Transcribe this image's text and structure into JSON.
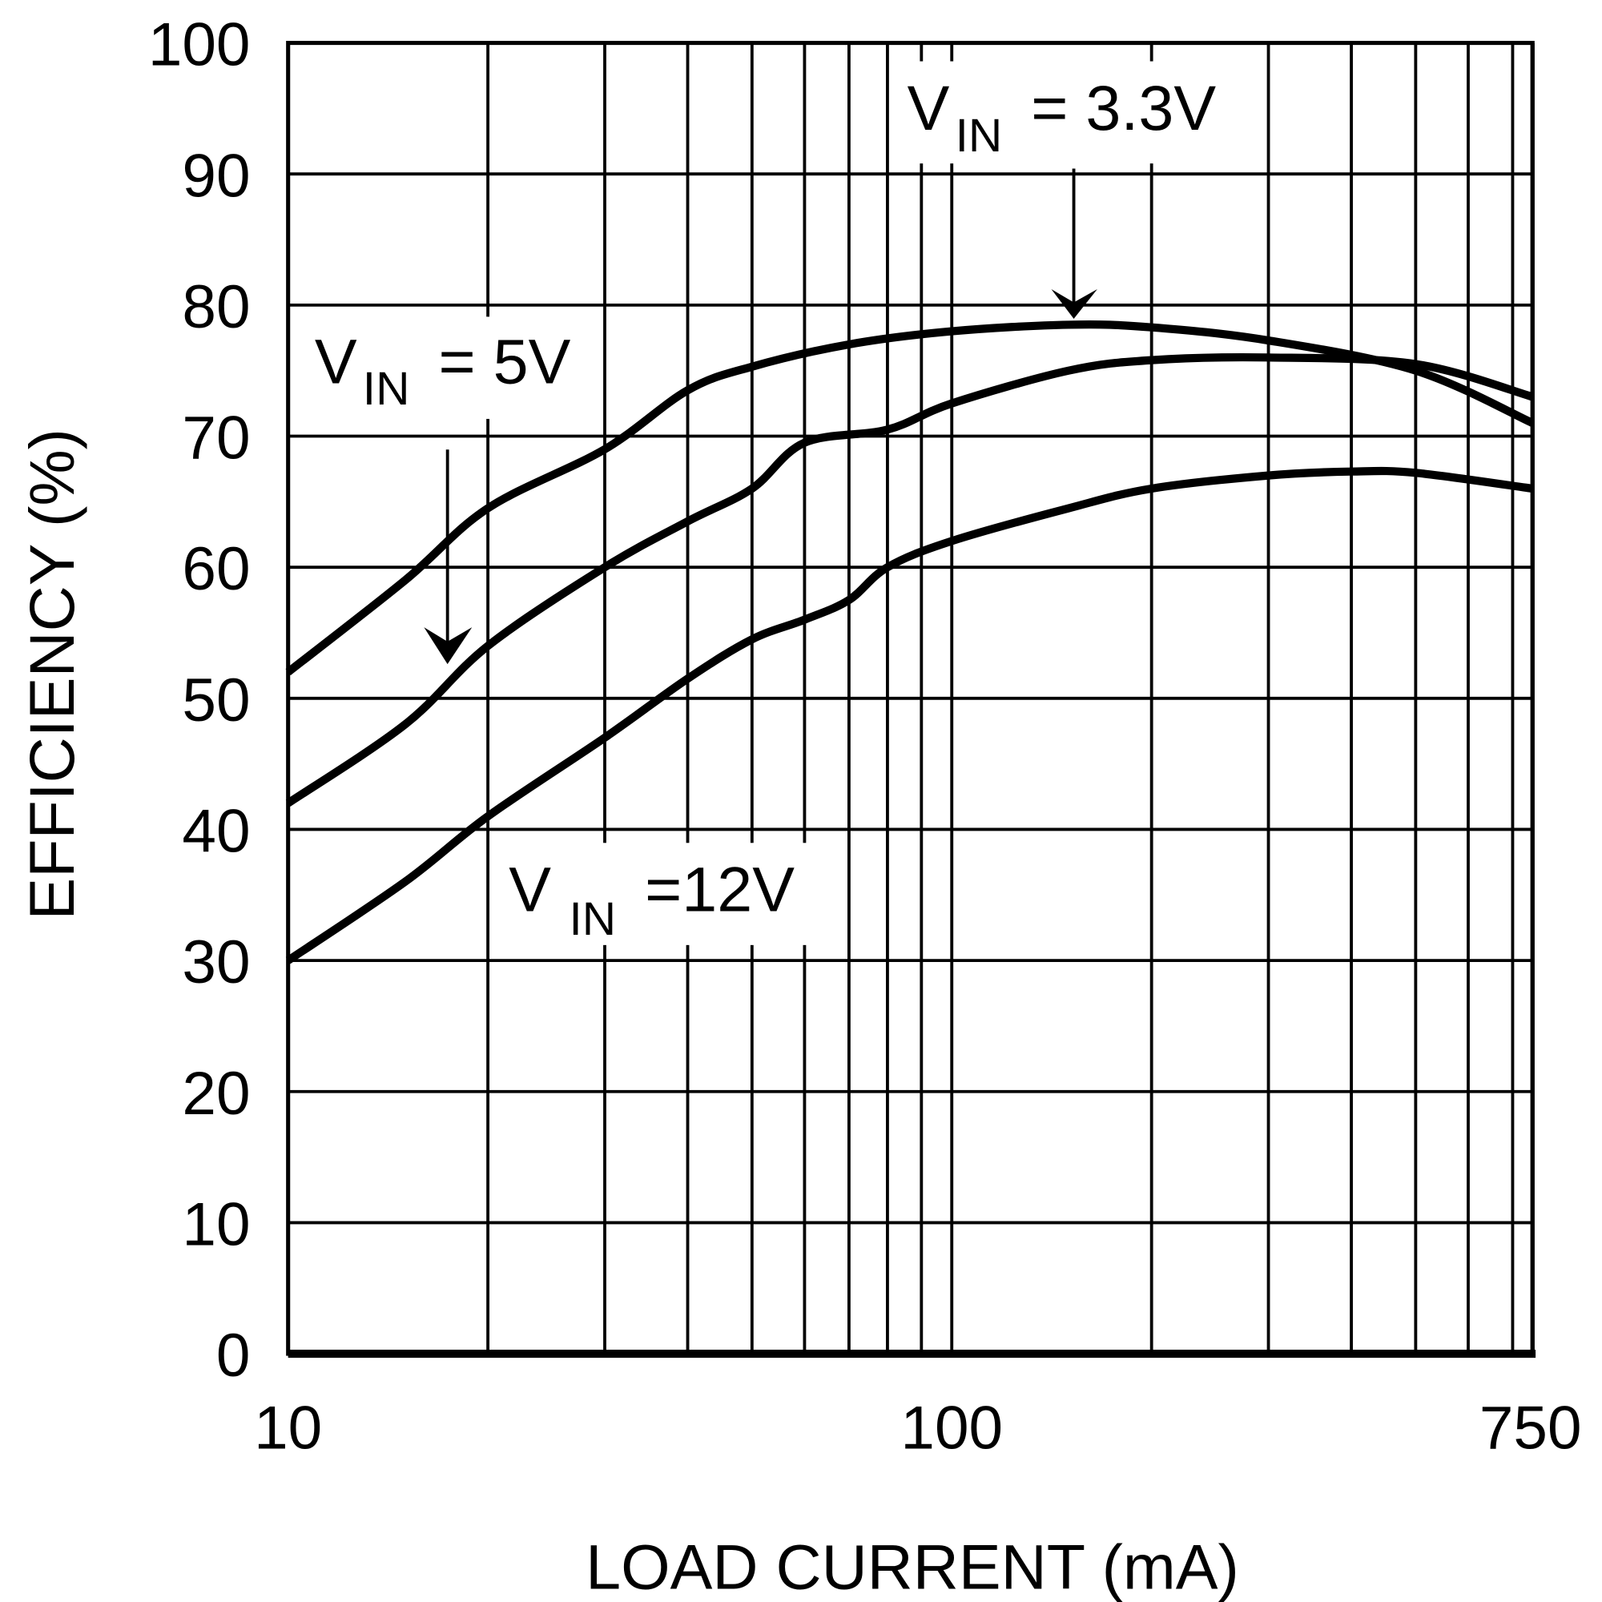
{
  "chart_data": {
    "type": "line",
    "title": "",
    "xlabel": "LOAD CURRENT (mA)",
    "ylabel": "EFFICIENCY (%)",
    "xscale": "log",
    "xlim": [
      10,
      750
    ],
    "ylim": [
      0,
      100
    ],
    "grid": true,
    "line_color": "#000000",
    "xticks": [
      10,
      100,
      750
    ],
    "xtick_labels": [
      "10",
      "100",
      "750"
    ],
    "yticks": [
      0,
      10,
      20,
      30,
      40,
      50,
      60,
      70,
      80,
      90,
      100
    ],
    "ytick_labels": [
      "0",
      "10",
      "20",
      "30",
      "40",
      "50",
      "60",
      "70",
      "80",
      "90",
      "100"
    ],
    "series": [
      {
        "name": "VIN = 3.3V",
        "label_main": "V",
        "label_sub": "IN",
        "label_rest": " = 3.3V",
        "x": [
          10,
          15,
          20,
          30,
          40,
          50,
          70,
          100,
          150,
          200,
          300,
          500,
          750
        ],
        "y": [
          52,
          59,
          64.5,
          69,
          73.5,
          75.3,
          77,
          78,
          78.5,
          78.3,
          77.3,
          75,
          71
        ]
      },
      {
        "name": "VIN = 5V",
        "label_main": "V",
        "label_sub": "IN",
        "label_rest": " = 5V",
        "x": [
          10,
          15,
          20,
          30,
          40,
          50,
          60,
          80,
          100,
          150,
          200,
          300,
          500,
          750
        ],
        "y": [
          42,
          48,
          54,
          60,
          63.5,
          66,
          69.5,
          70.5,
          72.5,
          75,
          75.8,
          76,
          75.5,
          73
        ]
      },
      {
        "name": "VIN =12V",
        "label_main": "V",
        "label_sub": "IN",
        "label_rest": " =12V",
        "x": [
          10,
          15,
          20,
          30,
          40,
          50,
          60,
          70,
          80,
          100,
          150,
          200,
          300,
          400,
          500,
          750
        ],
        "y": [
          30,
          36,
          41,
          47,
          51.5,
          54.5,
          56,
          57.5,
          60,
          62,
          64.5,
          66,
          67,
          67.3,
          67.2,
          66
        ]
      }
    ]
  }
}
